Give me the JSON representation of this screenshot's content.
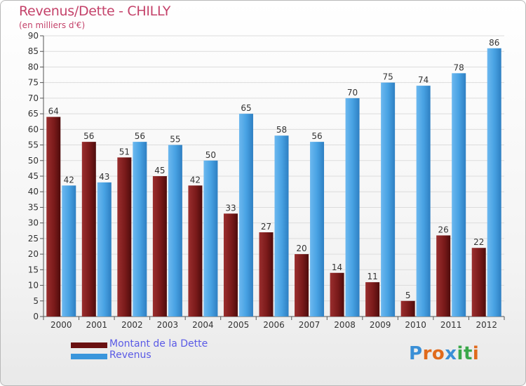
{
  "chart_data": {
    "type": "bar",
    "title": "Revenus/Dette - CHILLY",
    "subtitle": "(en milliers d'€)",
    "categories": [
      "2000",
      "2001",
      "2002",
      "2003",
      "2004",
      "2005",
      "2006",
      "2007",
      "2008",
      "2009",
      "2010",
      "2011",
      "2012"
    ],
    "series": [
      {
        "name": "Montant de la Dette",
        "color": "#7a1a1a",
        "values": [
          64,
          56,
          51,
          45,
          42,
          33,
          27,
          20,
          14,
          11,
          5,
          26,
          22
        ]
      },
      {
        "name": "Revenus",
        "color": "#3a96dc",
        "values": [
          42,
          43,
          56,
          55,
          50,
          65,
          58,
          56,
          70,
          75,
          74,
          78,
          86
        ]
      }
    ],
    "ylim": [
      0,
      90
    ],
    "yticks": [
      0,
      5,
      10,
      15,
      20,
      25,
      30,
      35,
      40,
      45,
      50,
      55,
      60,
      65,
      70,
      75,
      80,
      85,
      90
    ],
    "grid": true,
    "legend_placement": "bottom-left"
  },
  "logo": {
    "text": "Proxiti",
    "letter_colors": [
      "#3a8fd6",
      "#e06a1c",
      "#e06a1c",
      "#3a8fd6",
      "#3aa84a",
      "#3aa84a",
      "#e06a1c"
    ]
  }
}
